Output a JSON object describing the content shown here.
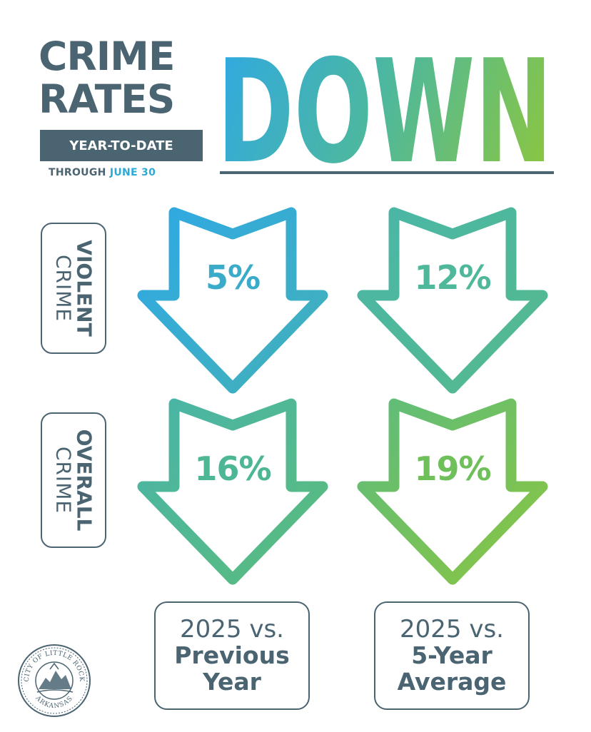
{
  "header": {
    "title_line1": "CRIME",
    "title_line2": "RATES",
    "headline": "DOWN",
    "subtitle_box": "YEAR-TO-DATE",
    "through_prefix": "THROUGH",
    "through_date": "JUNE 30"
  },
  "rows": [
    {
      "label_bold": "VIOLENT",
      "label_normal": "CRIME"
    },
    {
      "label_bold": "OVERALL",
      "label_normal": "CRIME"
    }
  ],
  "columns": [
    {
      "line1": "2025 vs.",
      "line2": "Previous",
      "line3": "Year"
    },
    {
      "line1": "2025 vs.",
      "line2": "5-Year",
      "line3": "Average"
    }
  ],
  "stats": {
    "violent_vs_previous_year": "5%",
    "violent_vs_5yr_average": "12%",
    "overall_vs_previous_year": "16%",
    "overall_vs_5yr_average": "19%"
  },
  "seal": {
    "text_top": "CITY OF LITTLE ROCK",
    "text_bottom": "ARKANSAS"
  },
  "colors": {
    "dark_slate": "#4a6472",
    "gradient_start_blue": "#2ea8e6",
    "gradient_mid_teal": "#4db89e",
    "gradient_end_green": "#8cc63f"
  }
}
